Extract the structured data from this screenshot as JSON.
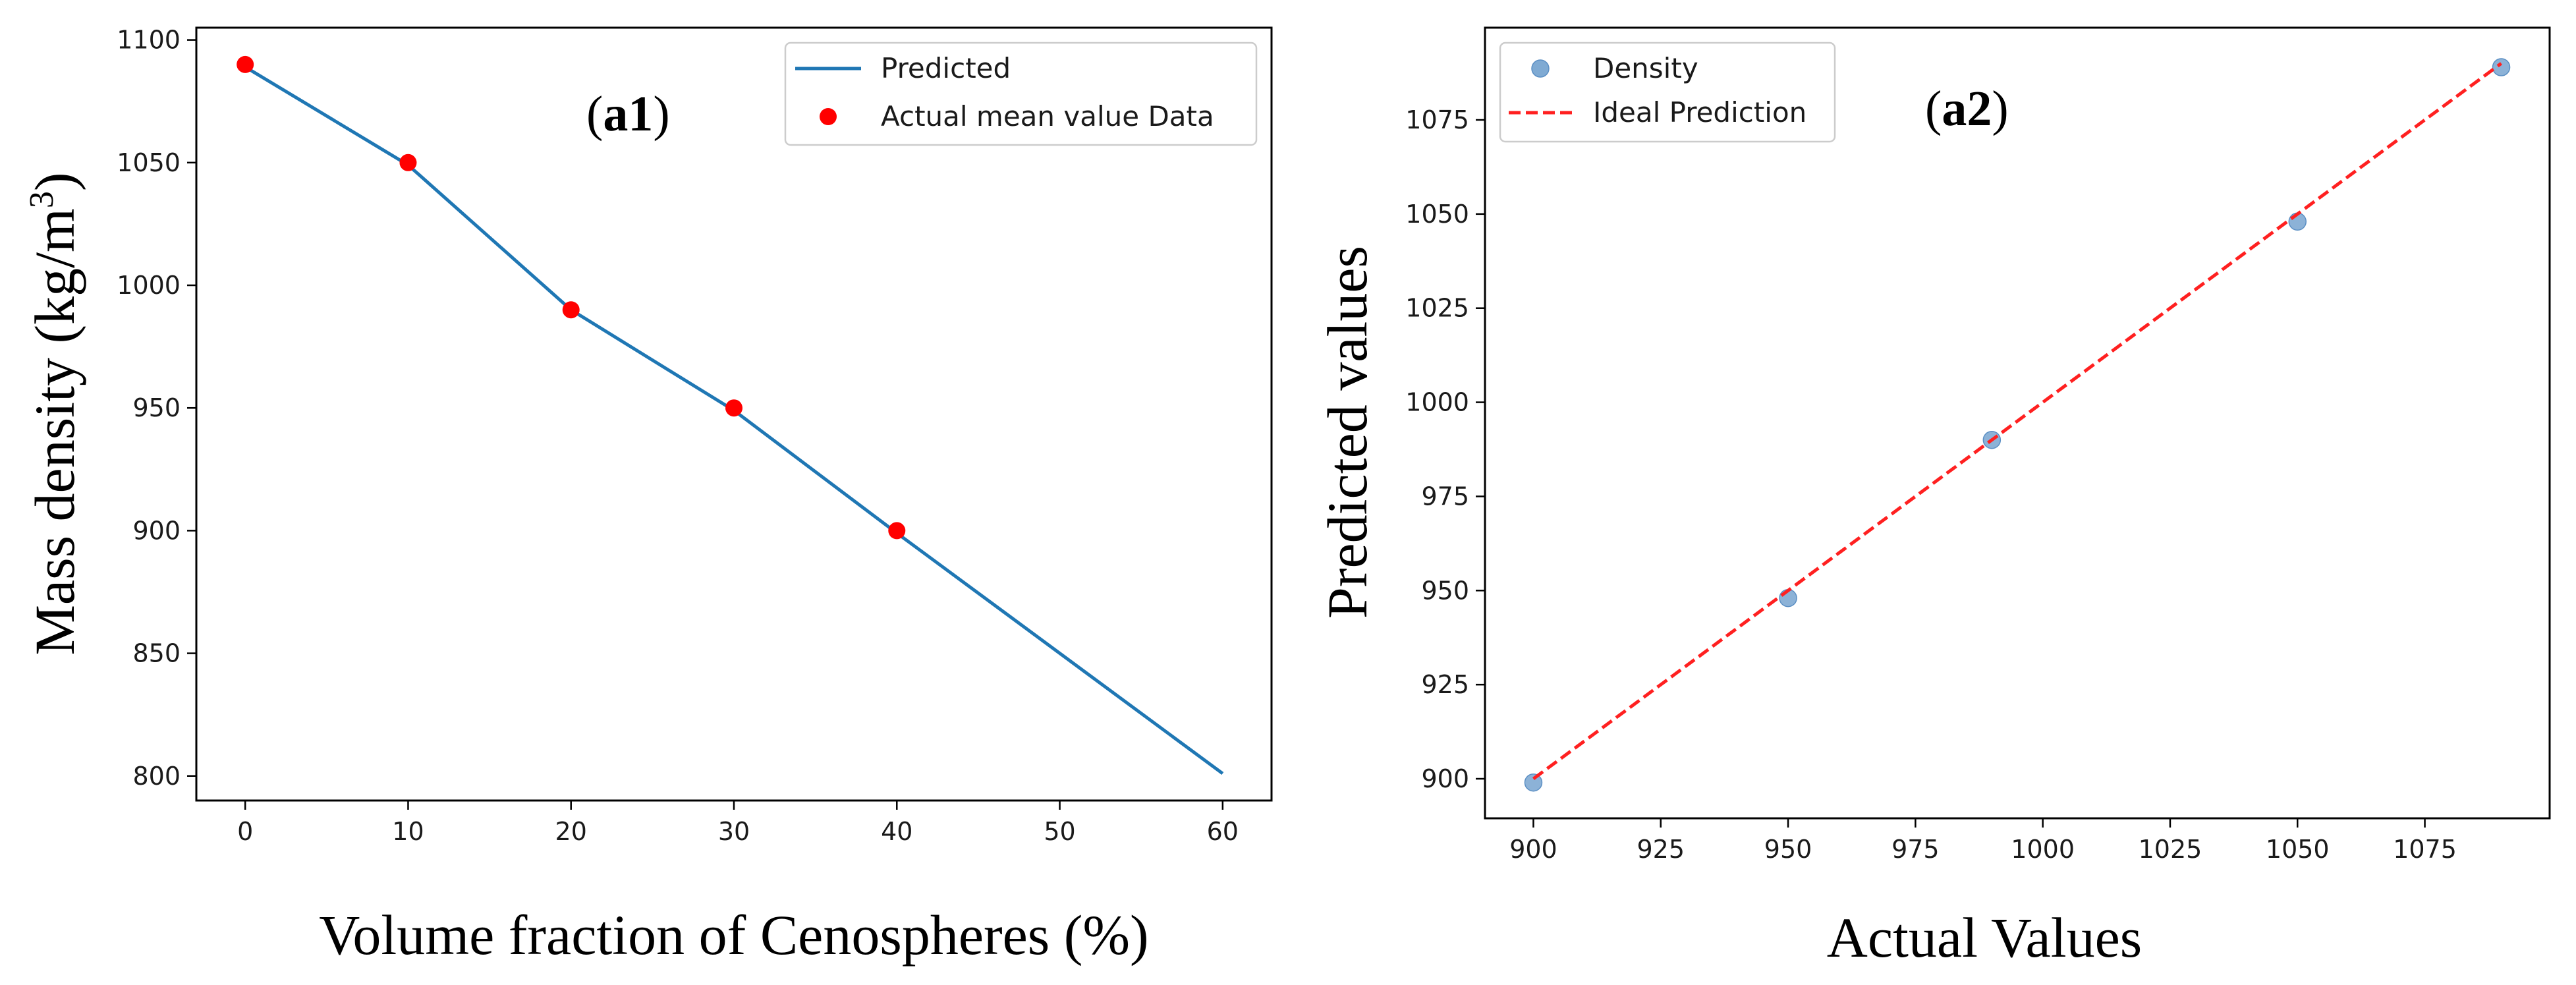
{
  "chart_data": [
    {
      "type": "line",
      "panel_label": {
        "letter": "a",
        "number": "1"
      },
      "title": "",
      "xlabel": "Volume fraction of Cenospheres (%)",
      "ylabel": "Mass density (kg/m3)",
      "ylabel_main": "Mass density (kg/m",
      "ylabel_sup": "3",
      "ylabel_close": ")",
      "xlim": [
        -3,
        63
      ],
      "ylim": [
        790,
        1105
      ],
      "xticks": [
        0,
        10,
        20,
        30,
        40,
        50,
        60
      ],
      "yticks": [
        800,
        850,
        900,
        950,
        1000,
        1050,
        1100
      ],
      "legend_position": "top-right",
      "series": [
        {
          "name": "Predicted",
          "kind": "line",
          "color": "#1f77b4",
          "x": [
            0,
            8,
            10,
            20,
            30,
            40,
            60
          ],
          "y": [
            1089,
            1057,
            1049,
            990,
            949,
            899,
            801
          ]
        },
        {
          "name": "Actual mean value Data",
          "kind": "scatter",
          "color": "#ff0000",
          "x": [
            0,
            10,
            20,
            30,
            40
          ],
          "y": [
            1090,
            1050,
            990,
            950,
            900
          ]
        }
      ]
    },
    {
      "type": "scatter",
      "panel_label": {
        "letter": "a",
        "number": "2"
      },
      "title": "",
      "xlabel": "Actual Values",
      "ylabel": "Predicted values",
      "xlim": [
        890.5,
        1099.5
      ],
      "ylim": [
        889.5,
        1099.5
      ],
      "xticks": [
        900,
        925,
        950,
        975,
        1000,
        1025,
        1050,
        1075
      ],
      "xtick_labels": [
        "900",
        "925",
        "950",
        "975",
        "1000",
        "1025",
        "1050",
        "1075"
      ],
      "yticks": [
        900,
        925,
        950,
        975,
        1000,
        1025,
        1050,
        1075
      ],
      "legend_position": "top-left",
      "series": [
        {
          "name": "Density",
          "kind": "scatter",
          "color": "#7faad3",
          "x": [
            900,
            950,
            990,
            1050,
            1090
          ],
          "y": [
            899,
            948,
            990,
            1048,
            1089
          ]
        },
        {
          "name": "Ideal Prediction",
          "kind": "dashed-line",
          "color": "#ff2020",
          "x": [
            900,
            1090
          ],
          "y": [
            900,
            1090
          ]
        }
      ]
    }
  ]
}
